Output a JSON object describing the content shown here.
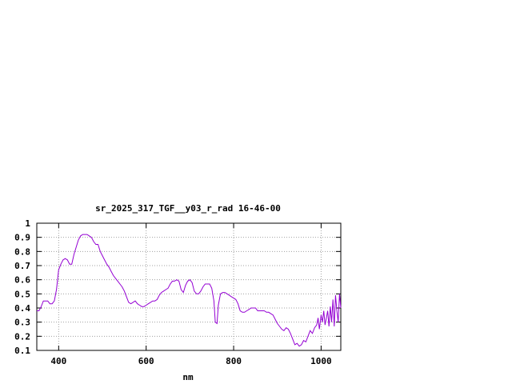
{
  "chart_data": {
    "type": "line",
    "title": "sr_2025_317_TGF__y03_r_rad 16-46-00",
    "xlabel": "nm",
    "ylabel": "",
    "xlim": [
      350,
      1045
    ],
    "ylim": [
      0.1,
      1.0
    ],
    "grid": true,
    "x_ticks": [
      400,
      600,
      800,
      1000
    ],
    "y_ticks": [
      0.1,
      0.2,
      0.3,
      0.4,
      0.5,
      0.6,
      0.7,
      0.8,
      0.9,
      1.0
    ],
    "series": [
      {
        "color": "#9400d3",
        "points": [
          [
            350,
            0.38
          ],
          [
            355,
            0.38
          ],
          [
            360,
            0.41
          ],
          [
            365,
            0.45
          ],
          [
            370,
            0.45
          ],
          [
            375,
            0.45
          ],
          [
            380,
            0.43
          ],
          [
            385,
            0.43
          ],
          [
            390,
            0.45
          ],
          [
            395,
            0.53
          ],
          [
            400,
            0.67
          ],
          [
            405,
            0.71
          ],
          [
            410,
            0.74
          ],
          [
            415,
            0.75
          ],
          [
            420,
            0.74
          ],
          [
            425,
            0.71
          ],
          [
            430,
            0.71
          ],
          [
            435,
            0.78
          ],
          [
            440,
            0.83
          ],
          [
            445,
            0.88
          ],
          [
            450,
            0.91
          ],
          [
            455,
            0.92
          ],
          [
            460,
            0.92
          ],
          [
            465,
            0.92
          ],
          [
            470,
            0.91
          ],
          [
            475,
            0.9
          ],
          [
            480,
            0.87
          ],
          [
            485,
            0.85
          ],
          [
            490,
            0.85
          ],
          [
            495,
            0.8
          ],
          [
            500,
            0.77
          ],
          [
            505,
            0.74
          ],
          [
            510,
            0.71
          ],
          [
            515,
            0.69
          ],
          [
            520,
            0.66
          ],
          [
            525,
            0.63
          ],
          [
            530,
            0.61
          ],
          [
            535,
            0.59
          ],
          [
            540,
            0.57
          ],
          [
            545,
            0.55
          ],
          [
            550,
            0.52
          ],
          [
            555,
            0.48
          ],
          [
            560,
            0.44
          ],
          [
            565,
            0.43
          ],
          [
            570,
            0.44
          ],
          [
            575,
            0.45
          ],
          [
            580,
            0.43
          ],
          [
            585,
            0.42
          ],
          [
            590,
            0.41
          ],
          [
            595,
            0.41
          ],
          [
            600,
            0.42
          ],
          [
            605,
            0.43
          ],
          [
            610,
            0.44
          ],
          [
            615,
            0.45
          ],
          [
            620,
            0.45
          ],
          [
            625,
            0.46
          ],
          [
            630,
            0.49
          ],
          [
            635,
            0.51
          ],
          [
            640,
            0.52
          ],
          [
            645,
            0.53
          ],
          [
            650,
            0.54
          ],
          [
            655,
            0.57
          ],
          [
            660,
            0.59
          ],
          [
            665,
            0.59
          ],
          [
            670,
            0.6
          ],
          [
            675,
            0.59
          ],
          [
            680,
            0.53
          ],
          [
            685,
            0.51
          ],
          [
            690,
            0.56
          ],
          [
            695,
            0.59
          ],
          [
            700,
            0.6
          ],
          [
            705,
            0.58
          ],
          [
            710,
            0.52
          ],
          [
            715,
            0.5
          ],
          [
            720,
            0.5
          ],
          [
            725,
            0.52
          ],
          [
            730,
            0.55
          ],
          [
            735,
            0.57
          ],
          [
            740,
            0.57
          ],
          [
            745,
            0.57
          ],
          [
            750,
            0.54
          ],
          [
            755,
            0.45
          ],
          [
            758,
            0.3
          ],
          [
            762,
            0.29
          ],
          [
            765,
            0.42
          ],
          [
            770,
            0.5
          ],
          [
            775,
            0.51
          ],
          [
            780,
            0.51
          ],
          [
            785,
            0.5
          ],
          [
            790,
            0.49
          ],
          [
            795,
            0.48
          ],
          [
            800,
            0.47
          ],
          [
            805,
            0.46
          ],
          [
            810,
            0.43
          ],
          [
            815,
            0.38
          ],
          [
            820,
            0.37
          ],
          [
            825,
            0.37
          ],
          [
            830,
            0.38
          ],
          [
            835,
            0.39
          ],
          [
            840,
            0.4
          ],
          [
            845,
            0.4
          ],
          [
            850,
            0.4
          ],
          [
            855,
            0.38
          ],
          [
            860,
            0.38
          ],
          [
            865,
            0.38
          ],
          [
            870,
            0.38
          ],
          [
            875,
            0.37
          ],
          [
            880,
            0.37
          ],
          [
            885,
            0.36
          ],
          [
            890,
            0.35
          ],
          [
            895,
            0.32
          ],
          [
            900,
            0.29
          ],
          [
            905,
            0.27
          ],
          [
            910,
            0.25
          ],
          [
            915,
            0.24
          ],
          [
            920,
            0.26
          ],
          [
            925,
            0.25
          ],
          [
            930,
            0.22
          ],
          [
            935,
            0.18
          ],
          [
            940,
            0.14
          ],
          [
            945,
            0.15
          ],
          [
            950,
            0.13
          ],
          [
            955,
            0.14
          ],
          [
            960,
            0.17
          ],
          [
            965,
            0.16
          ],
          [
            970,
            0.2
          ],
          [
            975,
            0.24
          ],
          [
            980,
            0.22
          ],
          [
            985,
            0.26
          ],
          [
            990,
            0.28
          ],
          [
            993,
            0.33
          ],
          [
            996,
            0.25
          ],
          [
            1000,
            0.35
          ],
          [
            1003,
            0.3
          ],
          [
            1006,
            0.38
          ],
          [
            1009,
            0.28
          ],
          [
            1012,
            0.33
          ],
          [
            1015,
            0.38
          ],
          [
            1018,
            0.27
          ],
          [
            1021,
            0.41
          ],
          [
            1024,
            0.3
          ],
          [
            1027,
            0.46
          ],
          [
            1030,
            0.27
          ],
          [
            1033,
            0.49
          ],
          [
            1036,
            0.38
          ],
          [
            1039,
            0.3
          ],
          [
            1042,
            0.5
          ],
          [
            1045,
            0.4
          ]
        ]
      }
    ]
  }
}
